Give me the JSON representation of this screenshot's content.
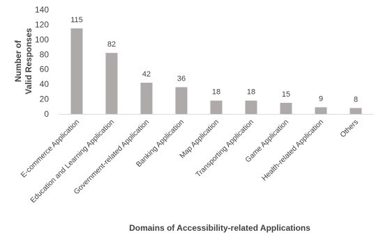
{
  "chart_data": {
    "type": "bar",
    "categories": [
      "E-commerce Application",
      "Education and Learning Application",
      "Government-related Application",
      "Banking Application",
      "Map Application",
      "Transporting Application",
      "Game Application",
      "Health-related Application",
      "Others"
    ],
    "values": [
      115,
      82,
      42,
      36,
      18,
      18,
      15,
      9,
      8
    ],
    "data_labels": [
      "115",
      "82",
      "42",
      "36",
      "18",
      "18",
      "15",
      "9",
      "8"
    ],
    "xlabel": "Domains of Accessibility-related Applications",
    "ylabel_lines": [
      "Number of",
      "Valid Responses"
    ],
    "ylim": [
      0,
      140
    ],
    "yticks": [
      "0",
      "20",
      "40",
      "60",
      "80",
      "100",
      "120",
      "140"
    ],
    "grid": false,
    "legend": "none",
    "bar_color": "#aeaaaa",
    "axis_color": "#d9d9d9"
  }
}
